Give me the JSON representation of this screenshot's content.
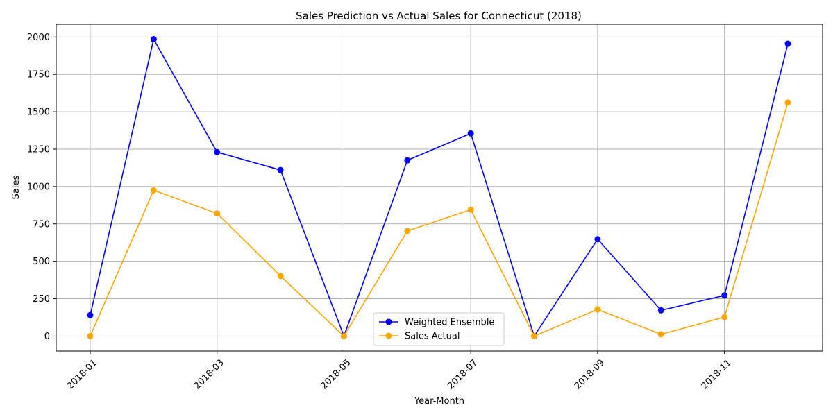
{
  "chart_data": {
    "type": "line",
    "title": "Sales Prediction vs Actual Sales for Connecticut (2018)",
    "xlabel": "Year-Month",
    "ylabel": "Sales",
    "x": [
      "2018-01",
      "2018-02",
      "2018-03",
      "2018-04",
      "2018-05",
      "2018-06",
      "2018-07",
      "2018-08",
      "2018-09",
      "2018-10",
      "2018-11",
      "2018-12"
    ],
    "x_ticks": [
      "2018-01",
      "2018-03",
      "2018-05",
      "2018-07",
      "2018-09",
      "2018-11"
    ],
    "y_ticks": [
      0,
      250,
      500,
      750,
      1000,
      1250,
      1500,
      1750,
      2000
    ],
    "ylim": [
      -100,
      2085
    ],
    "grid": true,
    "legend_position": "bottom-center",
    "series": [
      {
        "name": "Weighted Ensemble",
        "color": "#0000ff",
        "values": [
          140,
          1985,
          1230,
          1110,
          0,
          1175,
          1355,
          0,
          648,
          172,
          272,
          1955
        ]
      },
      {
        "name": "Sales Actual",
        "color": "#ffa500",
        "values": [
          0,
          975,
          820,
          402,
          0,
          703,
          845,
          0,
          178,
          12,
          127,
          1562
        ]
      }
    ]
  }
}
